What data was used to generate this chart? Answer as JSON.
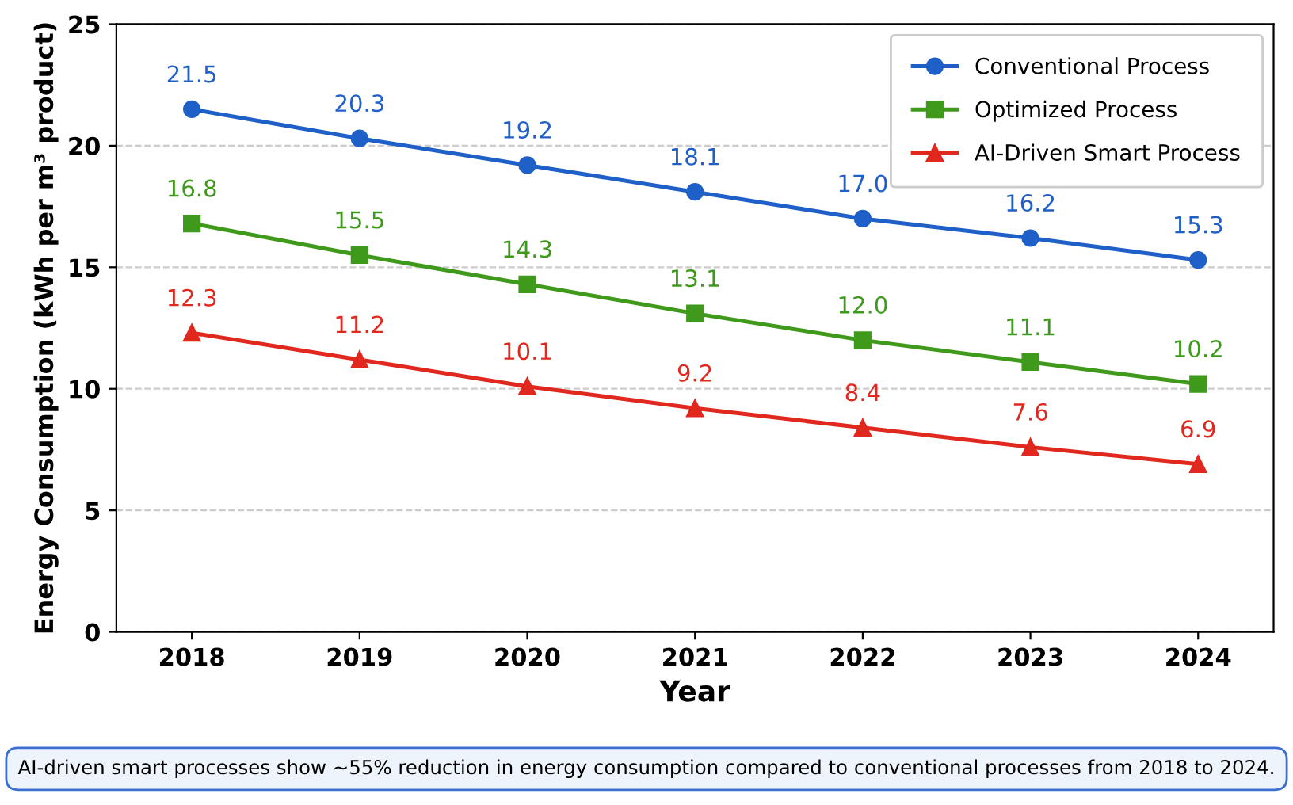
{
  "chart_data": {
    "type": "line",
    "xlabel": "Year",
    "ylabel": "Energy Consumption (kWh per m³ product)",
    "categories": [
      "2018",
      "2019",
      "2020",
      "2021",
      "2022",
      "2023",
      "2024"
    ],
    "series": [
      {
        "name": "Conventional Process",
        "color": "#1f5fc8",
        "marker": "circle",
        "values": [
          21.5,
          20.3,
          19.2,
          18.1,
          17.0,
          16.2,
          15.3
        ],
        "value_labels": [
          "21.5",
          "20.3",
          "19.2",
          "18.1",
          "17.0",
          "16.2",
          "15.3"
        ]
      },
      {
        "name": "Optimized Process",
        "color": "#3f9a1c",
        "marker": "square",
        "values": [
          16.8,
          15.5,
          14.3,
          13.1,
          12.0,
          11.1,
          10.2
        ],
        "value_labels": [
          "16.8",
          "15.5",
          "14.3",
          "13.1",
          "12.0",
          "11.1",
          "10.2"
        ]
      },
      {
        "name": "AI-Driven Smart Process",
        "color": "#e0281e",
        "marker": "triangle",
        "values": [
          12.3,
          11.2,
          10.1,
          9.2,
          8.4,
          7.6,
          6.9
        ],
        "value_labels": [
          "12.3",
          "11.2",
          "10.1",
          "9.2",
          "8.4",
          "7.6",
          "6.9"
        ]
      }
    ],
    "ylim": [
      0,
      25
    ],
    "yticks": [
      0,
      5,
      10,
      15,
      20,
      25
    ],
    "grid": "y",
    "legend": "top right",
    "line_style": "solid",
    "annotations": [
      "AI-driven smart processes show ~55% reduction in energy consumption compared to conventional processes from 2018 to 2024."
    ]
  }
}
